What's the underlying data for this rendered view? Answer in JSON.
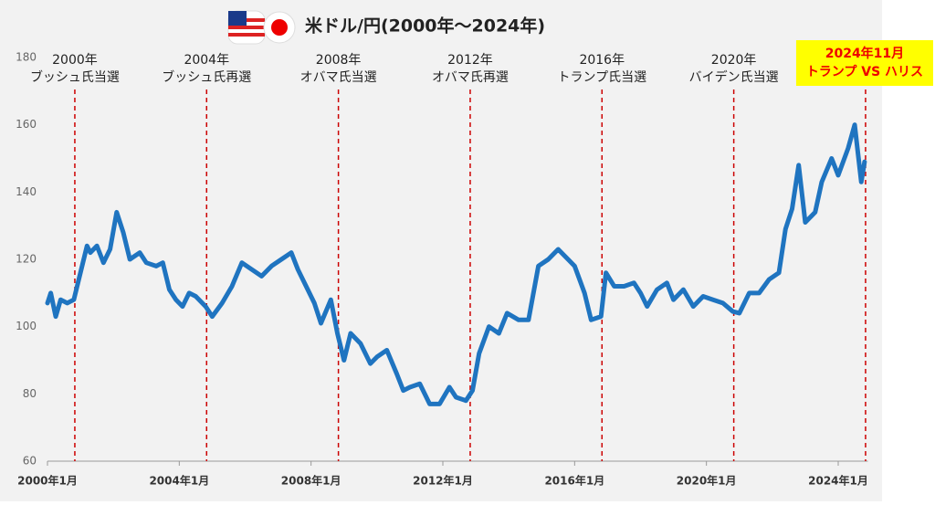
{
  "chart_data": {
    "type": "line",
    "title": "米ドル/円(2000年～2024年)",
    "x": [
      2000.0,
      2000.1,
      2000.25,
      2000.4,
      2000.6,
      2000.8,
      2001.0,
      2001.2,
      2001.3,
      2001.5,
      2001.7,
      2001.9,
      2002.1,
      2002.3,
      2002.5,
      2002.8,
      2003.0,
      2003.3,
      2003.5,
      2003.7,
      2003.9,
      2004.1,
      2004.3,
      2004.5,
      2004.8,
      2005.0,
      2005.3,
      2005.6,
      2005.9,
      2006.2,
      2006.5,
      2006.8,
      2007.1,
      2007.4,
      2007.6,
      2007.9,
      2008.1,
      2008.3,
      2008.6,
      2008.8,
      2009.0,
      2009.2,
      2009.5,
      2009.8,
      2010.0,
      2010.3,
      2010.6,
      2010.8,
      2011.0,
      2011.3,
      2011.6,
      2011.9,
      2012.2,
      2012.4,
      2012.7,
      2012.9,
      2013.1,
      2013.4,
      2013.7,
      2013.95,
      2014.3,
      2014.6,
      2014.9,
      2015.2,
      2015.5,
      2015.8,
      2016.0,
      2016.3,
      2016.5,
      2016.8,
      2016.95,
      2017.2,
      2017.5,
      2017.8,
      2018.0,
      2018.2,
      2018.5,
      2018.8,
      2019.0,
      2019.3,
      2019.6,
      2019.9,
      2020.2,
      2020.5,
      2020.8,
      2021.0,
      2021.3,
      2021.6,
      2021.9,
      2022.2,
      2022.4,
      2022.6,
      2022.8,
      2023.0,
      2023.3,
      2023.5,
      2023.8,
      2024.0,
      2024.3,
      2024.5,
      2024.7,
      2024.8
    ],
    "series": [
      {
        "name": "米ドル/円",
        "color": "#1f74c0",
        "values": [
          107,
          110,
          103,
          108,
          107,
          108,
          116,
          124,
          122,
          124,
          119,
          123,
          134,
          128,
          120,
          122,
          119,
          118,
          119,
          111,
          108,
          106,
          110,
          109,
          106,
          103,
          107,
          112,
          119,
          117,
          115,
          118,
          120,
          122,
          117,
          111,
          107,
          101,
          108,
          98,
          90,
          98,
          95,
          89,
          91,
          93,
          86,
          81,
          82,
          83,
          77,
          77,
          82,
          79,
          78,
          81,
          92,
          100,
          98,
          104,
          102,
          102,
          118,
          120,
          123,
          120,
          118,
          110,
          102,
          103,
          116,
          112,
          112,
          113,
          110,
          106,
          111,
          113,
          108,
          111,
          106,
          109,
          108,
          107,
          104.5,
          104,
          110,
          110,
          114,
          116,
          129,
          135,
          148,
          131,
          134,
          143,
          150,
          145,
          153,
          160,
          143,
          149
        ]
      }
    ],
    "xlim": [
      2000,
      2024.9
    ],
    "ylim": [
      60,
      180
    ],
    "xticks": [
      {
        "value": 2000,
        "label": "2000年1月"
      },
      {
        "value": 2004,
        "label": "2004年1月"
      },
      {
        "value": 2008,
        "label": "2008年1月"
      },
      {
        "value": 2012,
        "label": "2012年1月"
      },
      {
        "value": 2016,
        "label": "2016年1月"
      },
      {
        "value": 2020,
        "label": "2020年1月"
      },
      {
        "value": 2024,
        "label": "2024年1月"
      }
    ],
    "yticks": [
      60,
      80,
      100,
      120,
      140,
      160,
      180
    ],
    "annotations": [
      {
        "x": 2000.83,
        "year": "2000年",
        "text": "ブッシュ氏当選"
      },
      {
        "x": 2004.83,
        "year": "2004年",
        "text": "ブッシュ氏再選"
      },
      {
        "x": 2008.83,
        "year": "2008年",
        "text": "オバマ氏当選"
      },
      {
        "x": 2012.83,
        "year": "2012年",
        "text": "オバマ氏再選"
      },
      {
        "x": 2016.83,
        "year": "2016年",
        "text": "トランプ氏当選"
      },
      {
        "x": 2020.83,
        "year": "2020年",
        "text": "バイデン氏当選"
      },
      {
        "x": 2024.83,
        "year": "2024年11月",
        "text": "トランプ VS ハリス",
        "highlight": true
      }
    ]
  }
}
